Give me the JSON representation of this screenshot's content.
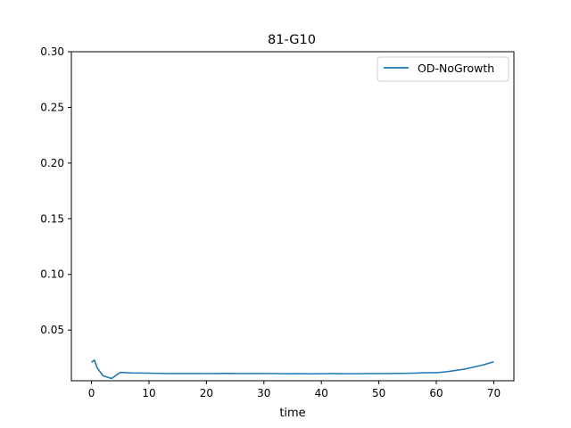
{
  "chart_data": {
    "type": "line",
    "title": "81-G10",
    "xlabel": "time",
    "ylabel": "",
    "xlim": [
      -3.5,
      73.5
    ],
    "ylim": [
      0.0045,
      0.3
    ],
    "x_ticks": [
      0,
      10,
      20,
      30,
      40,
      50,
      60,
      70
    ],
    "x_tick_labels": [
      "0",
      "10",
      "20",
      "30",
      "40",
      "50",
      "60",
      "70"
    ],
    "y_ticks": [
      0.05,
      0.1,
      0.15,
      0.2,
      0.25,
      0.3
    ],
    "y_tick_labels": [
      "0.05",
      "0.10",
      "0.15",
      "0.20",
      "0.25",
      "0.30"
    ],
    "grid": false,
    "legend_position": "top-right",
    "series": [
      {
        "name": "OD-NoGrowth",
        "color": "#1f77b4",
        "x": [
          0,
          0.5,
          1,
          2,
          3.5,
          5,
          7,
          10,
          13,
          16,
          19,
          20,
          22,
          24,
          26,
          28,
          30,
          32,
          34,
          36,
          38,
          40,
          42,
          44,
          46,
          48,
          50,
          52,
          54,
          56,
          58,
          59,
          60,
          62,
          65,
          68,
          70
        ],
        "y": [
          0.021,
          0.023,
          0.016,
          0.009,
          0.0065,
          0.012,
          0.0115,
          0.0113,
          0.011,
          0.011,
          0.011,
          0.0109,
          0.011,
          0.0111,
          0.0109,
          0.011,
          0.011,
          0.0109,
          0.0108,
          0.0109,
          0.0107,
          0.0108,
          0.0109,
          0.0108,
          0.0108,
          0.0109,
          0.0109,
          0.011,
          0.0111,
          0.0113,
          0.0117,
          0.0118,
          0.0117,
          0.0127,
          0.015,
          0.0185,
          0.0215
        ]
      }
    ]
  }
}
